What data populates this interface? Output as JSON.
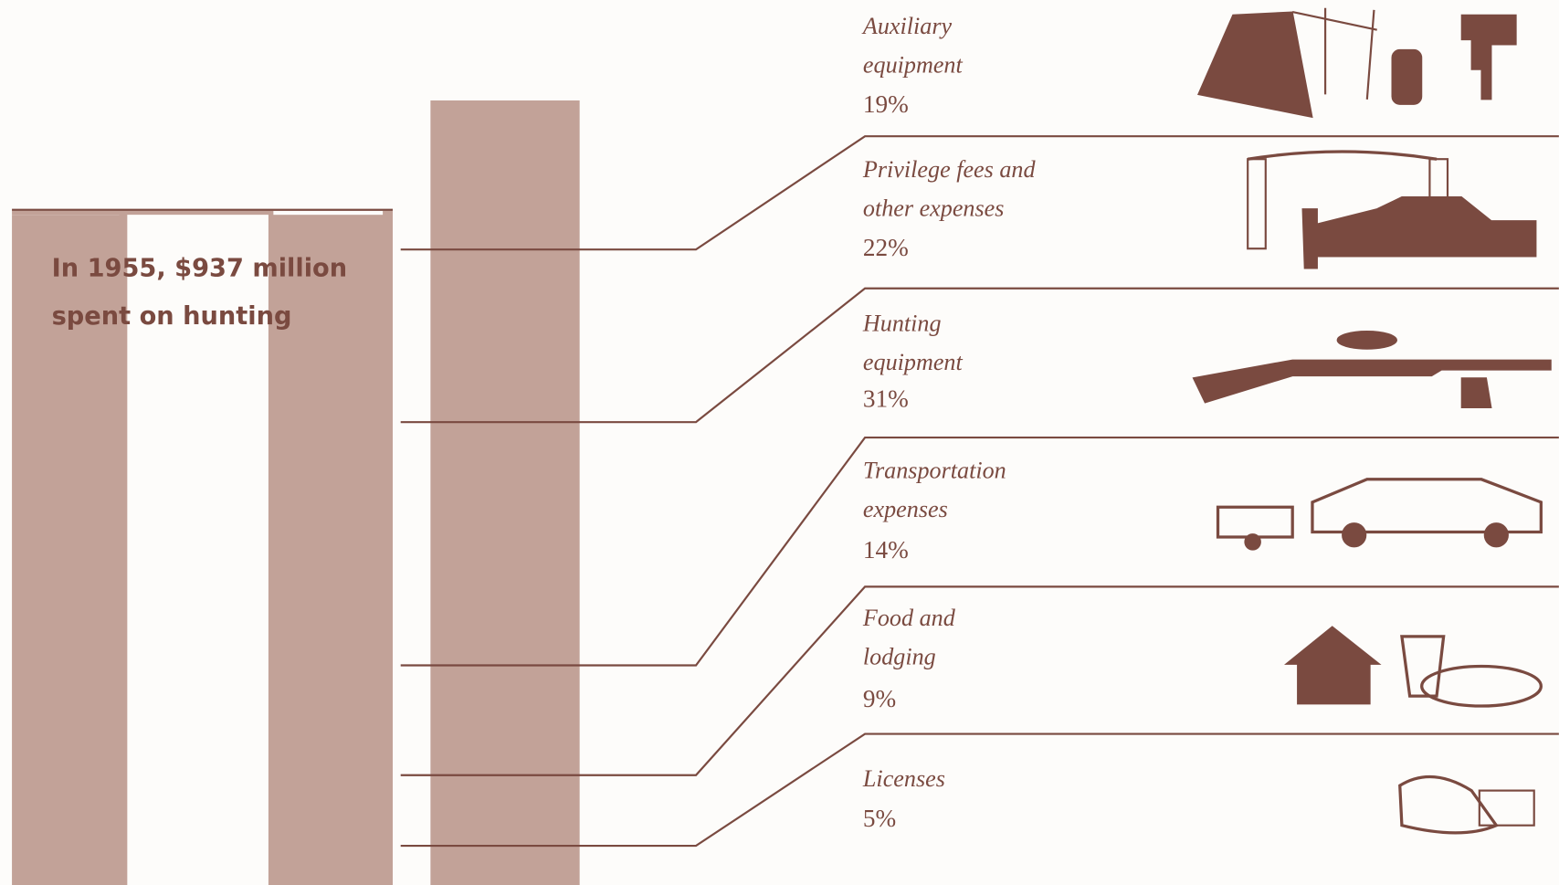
{
  "chart_data": {
    "type": "stacked-bar",
    "title": "In 1955, $937 million spent on hunting",
    "categories": [
      "Auxiliary equipment",
      "Privilege fees and other expenses",
      "Hunting equipment",
      "Transportation expenses",
      "Food and lodging",
      "Licenses"
    ],
    "values": [
      19,
      22,
      31,
      14,
      9,
      5
    ],
    "value_labels": [
      "19%",
      "22%",
      "31%",
      "14%",
      "9%",
      "5%"
    ],
    "color": "#c2a298"
  }
}
